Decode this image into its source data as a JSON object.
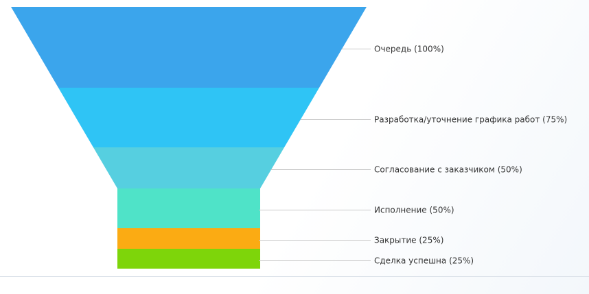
{
  "chart_data": {
    "type": "funnel",
    "title": "",
    "stages": [
      {
        "label": "Очередь (100%)",
        "name": "Очередь",
        "percent": 100,
        "color": "#3ba5ec"
      },
      {
        "label": "Разработка/уточнение графика работ (75%)",
        "name": "Разработка/уточнение графика работ",
        "percent": 75,
        "color": "#2fc4f5"
      },
      {
        "label": "Согласование с заказчиком (50%)",
        "name": "Согласование с заказчиком",
        "percent": 50,
        "color": "#56cfe0"
      },
      {
        "label": "Исполнение (50%)",
        "name": "Исполнение",
        "percent": 50,
        "color": "#4fe3c8"
      },
      {
        "label": "Закрытие (25%)",
        "name": "Закрытие",
        "percent": 25,
        "color": "#fbab13"
      },
      {
        "label": "Сделка успешна (25%)",
        "name": "Сделка успешна",
        "percent": 25,
        "color": "#7ed50a"
      }
    ],
    "legend": "none",
    "grid": false
  }
}
